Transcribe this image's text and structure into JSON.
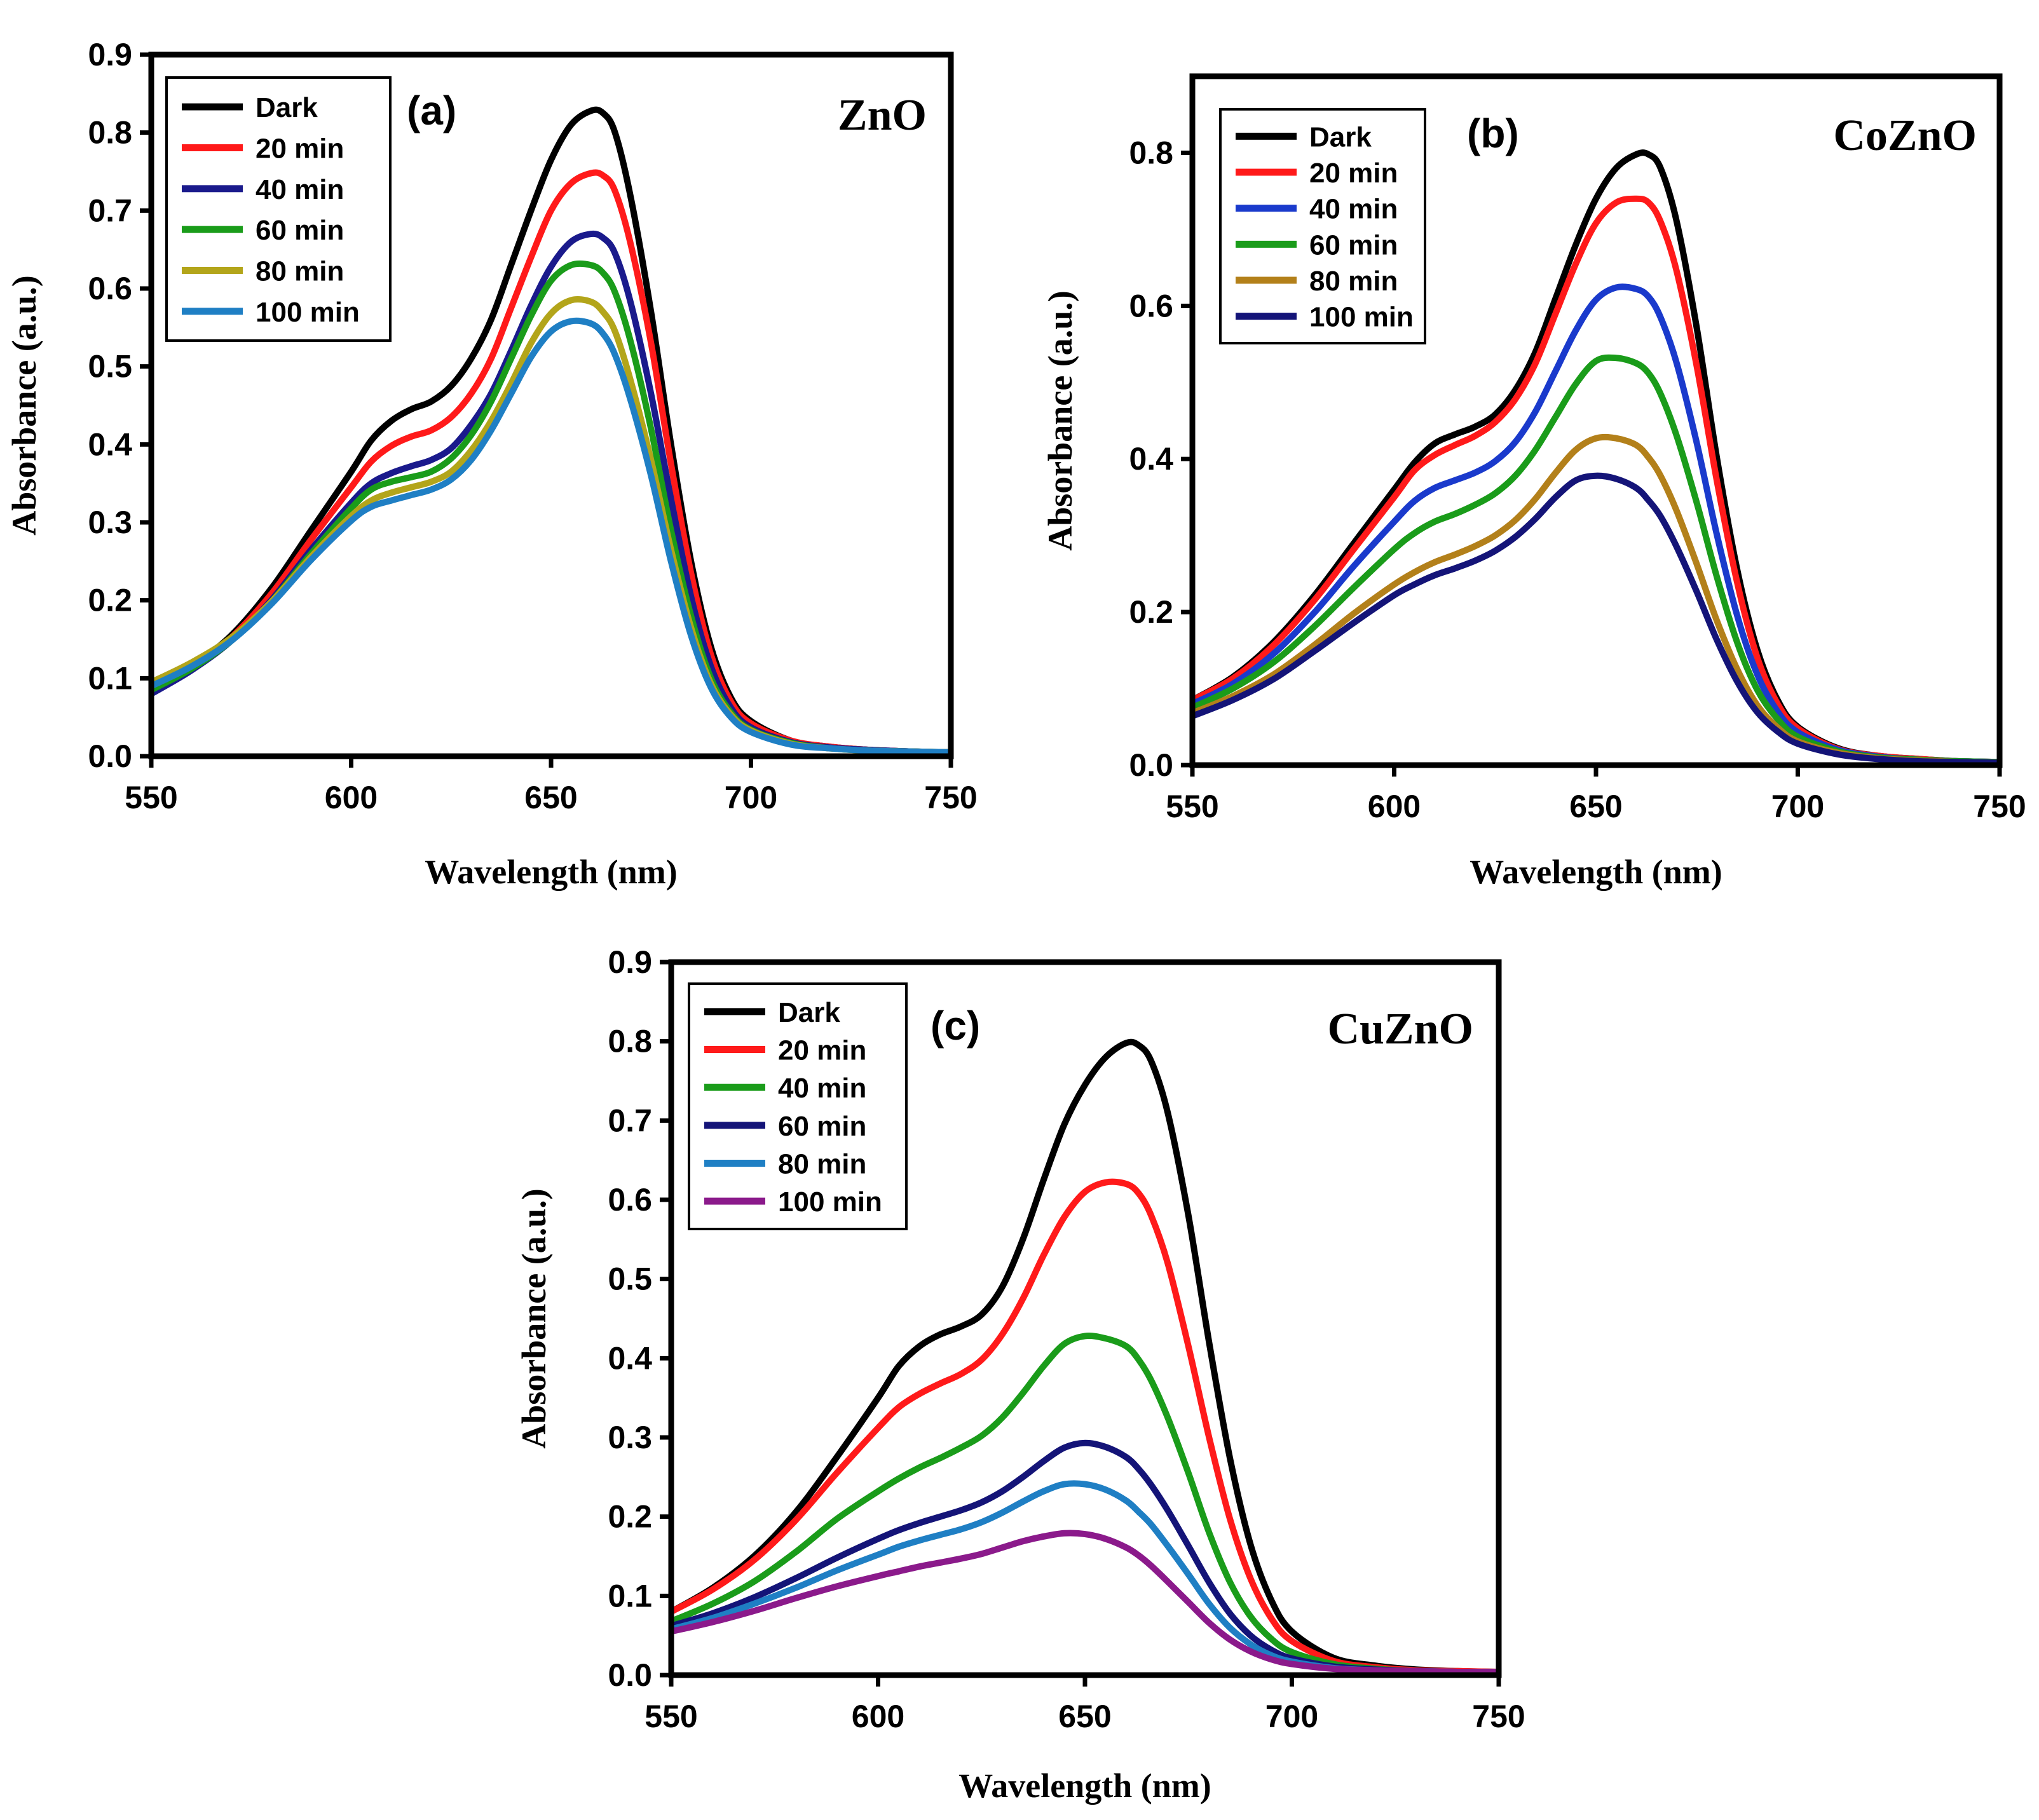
{
  "chart_data": [
    {
      "type": "line",
      "panel_label": "(a)",
      "material": "ZnO",
      "xlabel": "Wavelength (nm)",
      "ylabel": "Absorbance (a.u.)",
      "xlim": [
        550,
        750
      ],
      "ylim": [
        0,
        0.9
      ],
      "xticks": [
        "550",
        "600",
        "650",
        "700",
        "750"
      ],
      "yticks": [
        "0.0",
        "0.1",
        "0.2",
        "0.3",
        "0.4",
        "0.5",
        "0.6",
        "0.7",
        "0.8",
        "0.9"
      ],
      "legend_position": "top-left",
      "x": [
        550,
        560,
        570,
        580,
        590,
        600,
        605,
        610,
        615,
        620,
        625,
        630,
        635,
        640,
        645,
        650,
        655,
        660,
        663,
        666,
        670,
        675,
        680,
        685,
        690,
        695,
        700,
        710,
        720,
        730,
        740,
        750
      ],
      "series": [
        {
          "name": "Dark",
          "color": "#000000",
          "values": [
            0.085,
            0.115,
            0.155,
            0.215,
            0.29,
            0.365,
            0.405,
            0.43,
            0.445,
            0.455,
            0.475,
            0.51,
            0.56,
            0.63,
            0.7,
            0.765,
            0.81,
            0.828,
            0.825,
            0.8,
            0.715,
            0.57,
            0.4,
            0.25,
            0.14,
            0.075,
            0.045,
            0.02,
            0.012,
            0.008,
            0.006,
            0.005
          ]
        },
        {
          "name": "20 min",
          "color": "#ff1a1a",
          "values": [
            0.085,
            0.113,
            0.152,
            0.208,
            0.278,
            0.345,
            0.378,
            0.398,
            0.41,
            0.418,
            0.435,
            0.465,
            0.51,
            0.575,
            0.64,
            0.7,
            0.735,
            0.748,
            0.745,
            0.725,
            0.655,
            0.53,
            0.375,
            0.235,
            0.13,
            0.07,
            0.042,
            0.02,
            0.012,
            0.008,
            0.006,
            0.005
          ]
        },
        {
          "name": "40 min",
          "color": "#1a1a8c",
          "values": [
            0.08,
            0.11,
            0.148,
            0.2,
            0.265,
            0.325,
            0.35,
            0.363,
            0.372,
            0.38,
            0.395,
            0.425,
            0.465,
            0.52,
            0.578,
            0.628,
            0.66,
            0.67,
            0.665,
            0.645,
            0.58,
            0.465,
            0.33,
            0.205,
            0.115,
            0.062,
            0.037,
            0.018,
            0.011,
            0.008,
            0.006,
            0.005
          ]
        },
        {
          "name": "60 min",
          "color": "#1a9c1a",
          "values": [
            0.085,
            0.112,
            0.148,
            0.198,
            0.26,
            0.318,
            0.342,
            0.352,
            0.358,
            0.365,
            0.382,
            0.412,
            0.455,
            0.51,
            0.565,
            0.61,
            0.63,
            0.63,
            0.62,
            0.595,
            0.53,
            0.42,
            0.29,
            0.18,
            0.1,
            0.056,
            0.034,
            0.017,
            0.01,
            0.007,
            0.006,
            0.005
          ]
        },
        {
          "name": "80 min",
          "color": "#b3a51a",
          "values": [
            0.095,
            0.12,
            0.152,
            0.198,
            0.256,
            0.308,
            0.328,
            0.338,
            0.345,
            0.352,
            0.365,
            0.392,
            0.43,
            0.478,
            0.53,
            0.568,
            0.585,
            0.583,
            0.57,
            0.545,
            0.48,
            0.38,
            0.265,
            0.165,
            0.093,
            0.053,
            0.033,
            0.016,
            0.01,
            0.007,
            0.006,
            0.005
          ]
        },
        {
          "name": "100 min",
          "color": "#1f7fc4",
          "values": [
            0.09,
            0.115,
            0.148,
            0.195,
            0.252,
            0.302,
            0.32,
            0.328,
            0.335,
            0.342,
            0.355,
            0.38,
            0.418,
            0.465,
            0.512,
            0.545,
            0.558,
            0.555,
            0.542,
            0.515,
            0.455,
            0.36,
            0.25,
            0.155,
            0.088,
            0.05,
            0.031,
            0.015,
            0.01,
            0.007,
            0.006,
            0.005
          ]
        }
      ]
    },
    {
      "type": "line",
      "panel_label": "(b)",
      "material": "CoZnO",
      "xlabel": "Wavelength (nm)",
      "ylabel": "Absorbance (a.u.)",
      "xlim": [
        550,
        750
      ],
      "ylim": [
        0,
        0.9
      ],
      "xticks": [
        "550",
        "600",
        "650",
        "700",
        "750"
      ],
      "yticks": [
        "0.0",
        "0.2",
        "0.4",
        "0.6",
        "0.8"
      ],
      "legend_position": "top-left",
      "x": [
        550,
        560,
        570,
        580,
        590,
        600,
        605,
        610,
        615,
        620,
        625,
        630,
        635,
        640,
        645,
        650,
        655,
        660,
        663,
        666,
        670,
        675,
        680,
        685,
        690,
        695,
        700,
        710,
        720,
        730,
        740,
        750
      ],
      "series": [
        {
          "name": "Dark",
          "color": "#000000",
          "values": [
            0.085,
            0.115,
            0.16,
            0.22,
            0.29,
            0.36,
            0.395,
            0.42,
            0.432,
            0.442,
            0.458,
            0.49,
            0.54,
            0.61,
            0.68,
            0.74,
            0.78,
            0.798,
            0.798,
            0.78,
            0.71,
            0.57,
            0.4,
            0.255,
            0.15,
            0.085,
            0.05,
            0.022,
            0.012,
            0.008,
            0.005,
            0.004
          ]
        },
        {
          "name": "20 min",
          "color": "#ff1a1a",
          "values": [
            0.085,
            0.113,
            0.156,
            0.214,
            0.282,
            0.35,
            0.385,
            0.405,
            0.418,
            0.43,
            0.448,
            0.478,
            0.525,
            0.59,
            0.655,
            0.708,
            0.735,
            0.74,
            0.735,
            0.71,
            0.645,
            0.52,
            0.37,
            0.238,
            0.14,
            0.08,
            0.048,
            0.021,
            0.012,
            0.008,
            0.005,
            0.004
          ]
        },
        {
          "name": "40 min",
          "color": "#1a3acc",
          "values": [
            0.08,
            0.106,
            0.145,
            0.198,
            0.26,
            0.318,
            0.345,
            0.362,
            0.372,
            0.382,
            0.397,
            0.422,
            0.462,
            0.515,
            0.568,
            0.608,
            0.624,
            0.622,
            0.612,
            0.585,
            0.525,
            0.42,
            0.3,
            0.195,
            0.118,
            0.07,
            0.043,
            0.02,
            0.011,
            0.007,
            0.005,
            0.004
          ]
        },
        {
          "name": "60 min",
          "color": "#1a9c1a",
          "values": [
            0.075,
            0.1,
            0.134,
            0.18,
            0.232,
            0.282,
            0.303,
            0.318,
            0.328,
            0.34,
            0.355,
            0.378,
            0.412,
            0.455,
            0.498,
            0.528,
            0.532,
            0.525,
            0.512,
            0.485,
            0.43,
            0.342,
            0.245,
            0.16,
            0.098,
            0.06,
            0.037,
            0.018,
            0.01,
            0.007,
            0.005,
            0.004
          ]
        },
        {
          "name": "80 min",
          "color": "#b3801a",
          "values": [
            0.068,
            0.09,
            0.118,
            0.156,
            0.198,
            0.236,
            0.252,
            0.265,
            0.275,
            0.286,
            0.3,
            0.32,
            0.348,
            0.382,
            0.412,
            0.427,
            0.427,
            0.418,
            0.402,
            0.378,
            0.332,
            0.262,
            0.188,
            0.125,
            0.078,
            0.049,
            0.031,
            0.016,
            0.009,
            0.006,
            0.004,
            0.003
          ]
        },
        {
          "name": "100 min",
          "color": "#141478",
          "values": [
            0.064,
            0.085,
            0.112,
            0.148,
            0.186,
            0.222,
            0.236,
            0.248,
            0.257,
            0.267,
            0.28,
            0.298,
            0.322,
            0.35,
            0.372,
            0.378,
            0.374,
            0.362,
            0.346,
            0.325,
            0.285,
            0.226,
            0.163,
            0.109,
            0.069,
            0.044,
            0.028,
            0.014,
            0.008,
            0.005,
            0.004,
            0.003
          ]
        }
      ]
    },
    {
      "type": "line",
      "panel_label": "(c)",
      "material": "CuZnO",
      "xlabel": "Wavelength (nm)",
      "ylabel": "Absorbance (a.u.)",
      "xlim": [
        550,
        750
      ],
      "ylim": [
        0,
        0.9
      ],
      "xticks": [
        "550",
        "600",
        "650",
        "700",
        "750"
      ],
      "yticks": [
        "0.0",
        "0.1",
        "0.2",
        "0.3",
        "0.4",
        "0.5",
        "0.6",
        "0.7",
        "0.8",
        "0.9"
      ],
      "legend_position": "top-left",
      "x": [
        550,
        560,
        570,
        580,
        590,
        600,
        605,
        610,
        615,
        620,
        625,
        630,
        635,
        640,
        645,
        650,
        655,
        660,
        663,
        666,
        670,
        675,
        680,
        685,
        690,
        695,
        700,
        710,
        720,
        730,
        740,
        750
      ],
      "series": [
        {
          "name": "Dark",
          "color": "#000000",
          "values": [
            0.08,
            0.11,
            0.15,
            0.205,
            0.275,
            0.35,
            0.39,
            0.415,
            0.43,
            0.44,
            0.455,
            0.49,
            0.55,
            0.625,
            0.695,
            0.745,
            0.78,
            0.798,
            0.795,
            0.775,
            0.71,
            0.58,
            0.42,
            0.275,
            0.165,
            0.095,
            0.055,
            0.022,
            0.012,
            0.007,
            0.005,
            0.004
          ]
        },
        {
          "name": "20 min",
          "color": "#ff1a1a",
          "values": [
            0.08,
            0.108,
            0.145,
            0.195,
            0.255,
            0.312,
            0.338,
            0.355,
            0.368,
            0.38,
            0.398,
            0.43,
            0.475,
            0.53,
            0.578,
            0.61,
            0.622,
            0.62,
            0.608,
            0.58,
            0.52,
            0.415,
            0.3,
            0.198,
            0.122,
            0.072,
            0.043,
            0.018,
            0.01,
            0.006,
            0.005,
            0.004
          ]
        },
        {
          "name": "40 min",
          "color": "#1a9c1a",
          "values": [
            0.068,
            0.09,
            0.118,
            0.155,
            0.197,
            0.232,
            0.248,
            0.262,
            0.274,
            0.287,
            0.302,
            0.325,
            0.356,
            0.39,
            0.418,
            0.428,
            0.425,
            0.415,
            0.398,
            0.372,
            0.325,
            0.255,
            0.18,
            0.118,
            0.074,
            0.046,
            0.029,
            0.014,
            0.008,
            0.005,
            0.004,
            0.004
          ]
        },
        {
          "name": "60 min",
          "color": "#141478",
          "values": [
            0.062,
            0.078,
            0.098,
            0.122,
            0.148,
            0.172,
            0.183,
            0.192,
            0.2,
            0.208,
            0.218,
            0.232,
            0.25,
            0.27,
            0.287,
            0.293,
            0.288,
            0.275,
            0.26,
            0.24,
            0.208,
            0.163,
            0.117,
            0.078,
            0.05,
            0.032,
            0.021,
            0.011,
            0.007,
            0.005,
            0.004,
            0.004
          ]
        },
        {
          "name": "80 min",
          "color": "#1f7fc4",
          "values": [
            0.058,
            0.072,
            0.09,
            0.11,
            0.132,
            0.152,
            0.162,
            0.17,
            0.177,
            0.184,
            0.193,
            0.205,
            0.219,
            0.232,
            0.241,
            0.241,
            0.234,
            0.22,
            0.206,
            0.19,
            0.163,
            0.127,
            0.09,
            0.06,
            0.039,
            0.025,
            0.017,
            0.009,
            0.006,
            0.005,
            0.004,
            0.004
          ]
        },
        {
          "name": "100 min",
          "color": "#8b1a8b",
          "values": [
            0.055,
            0.067,
            0.081,
            0.097,
            0.112,
            0.125,
            0.131,
            0.137,
            0.142,
            0.147,
            0.153,
            0.161,
            0.169,
            0.175,
            0.179,
            0.178,
            0.172,
            0.161,
            0.151,
            0.138,
            0.118,
            0.092,
            0.066,
            0.045,
            0.03,
            0.02,
            0.014,
            0.008,
            0.006,
            0.005,
            0.004,
            0.004
          ]
        }
      ]
    }
  ]
}
